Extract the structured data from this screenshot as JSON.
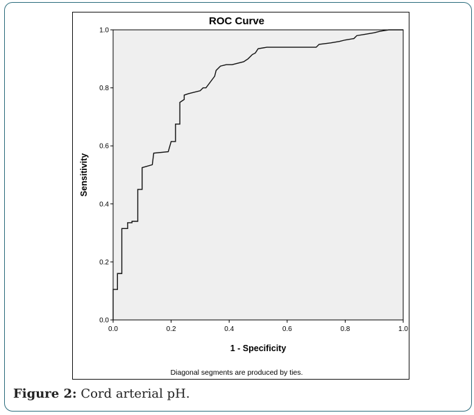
{
  "chart_data": {
    "type": "line",
    "title": "ROC Curve",
    "xlabel": "1 - Specificity",
    "ylabel": "Sensitivity",
    "xlim": [
      0,
      1
    ],
    "ylim": [
      0,
      1
    ],
    "x_ticks": [
      "0.0",
      "0.2",
      "0.4",
      "0.6",
      "0.8",
      "1.0"
    ],
    "y_ticks": [
      "0.0",
      "0.2",
      "0.4",
      "0.6",
      "0.8",
      "1.0"
    ],
    "grid": false,
    "footnote": "Diagonal segments are produced by ties.",
    "series": [
      {
        "points": [
          [
            0.0,
            0.0
          ],
          [
            0.0,
            0.105
          ],
          [
            0.015,
            0.105
          ],
          [
            0.015,
            0.16
          ],
          [
            0.03,
            0.16
          ],
          [
            0.03,
            0.315
          ],
          [
            0.05,
            0.315
          ],
          [
            0.05,
            0.335
          ],
          [
            0.065,
            0.335
          ],
          [
            0.065,
            0.34
          ],
          [
            0.085,
            0.34
          ],
          [
            0.085,
            0.45
          ],
          [
            0.1,
            0.45
          ],
          [
            0.1,
            0.525
          ],
          [
            0.135,
            0.535
          ],
          [
            0.14,
            0.575
          ],
          [
            0.19,
            0.58
          ],
          [
            0.2,
            0.615
          ],
          [
            0.215,
            0.615
          ],
          [
            0.215,
            0.675
          ],
          [
            0.23,
            0.675
          ],
          [
            0.23,
            0.75
          ],
          [
            0.245,
            0.76
          ],
          [
            0.245,
            0.775
          ],
          [
            0.26,
            0.78
          ],
          [
            0.3,
            0.79
          ],
          [
            0.31,
            0.8
          ],
          [
            0.32,
            0.8
          ],
          [
            0.335,
            0.82
          ],
          [
            0.35,
            0.84
          ],
          [
            0.355,
            0.86
          ],
          [
            0.37,
            0.875
          ],
          [
            0.39,
            0.88
          ],
          [
            0.41,
            0.88
          ],
          [
            0.43,
            0.885
          ],
          [
            0.45,
            0.89
          ],
          [
            0.465,
            0.9
          ],
          [
            0.48,
            0.915
          ],
          [
            0.49,
            0.92
          ],
          [
            0.5,
            0.935
          ],
          [
            0.53,
            0.94
          ],
          [
            0.7,
            0.94
          ],
          [
            0.71,
            0.95
          ],
          [
            0.75,
            0.955
          ],
          [
            0.78,
            0.96
          ],
          [
            0.8,
            0.965
          ],
          [
            0.83,
            0.97
          ],
          [
            0.84,
            0.98
          ],
          [
            0.87,
            0.985
          ],
          [
            0.9,
            0.99
          ],
          [
            0.92,
            0.995
          ],
          [
            0.95,
            1.0
          ],
          [
            1.0,
            1.0
          ]
        ]
      }
    ]
  },
  "caption": {
    "label": "Figure 2:",
    "text": " Cord arterial pH."
  },
  "colors": {
    "card_border": "#2e6e7e",
    "plot_background": "#efefef",
    "curve": "#111111"
  }
}
